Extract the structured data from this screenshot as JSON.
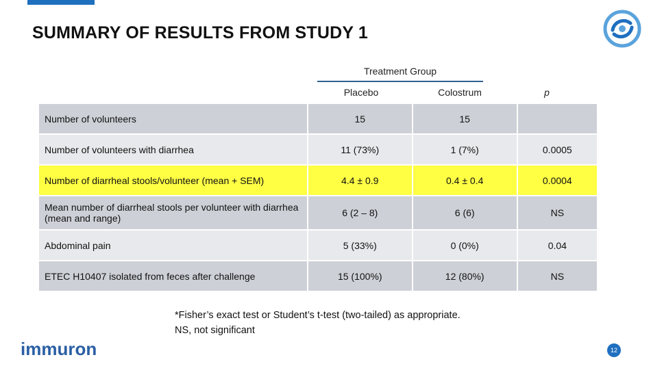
{
  "slide": {
    "title": "SUMMARY OF RESULTS FROM STUDY 1",
    "page_number": "12",
    "brand_name": "immuron",
    "accent_color": "#1f6fbf",
    "highlight_color": "#ffff44"
  },
  "table": {
    "group_header": "Treatment Group",
    "columns": [
      "Placebo",
      "Colostrum",
      "p"
    ],
    "rows": [
      {
        "label": "Number of volunteers",
        "placebo": "15",
        "colostrum": "15",
        "p": ""
      },
      {
        "label": "Number of volunteers with diarrhea",
        "placebo": "11 (73%)",
        "colostrum": "1 (7%)",
        "p": "0.0005"
      },
      {
        "label": "Number of diarrheal stools/volunteer (mean + SEM)",
        "placebo": "4.4 ± 0.9",
        "colostrum": "0.4 ± 0.4",
        "p": "0.0004"
      },
      {
        "label": "Mean number of diarrheal stools per volunteer with diarrhea (mean and range)",
        "placebo": "6 (2 – 8)",
        "colostrum": "6  (6)",
        "p": "NS"
      },
      {
        "label": "Abdominal pain",
        "placebo": "5 (33%)",
        "colostrum": "0 (0%)",
        "p": "0.04"
      },
      {
        "label": "ETEC H10407 isolated from feces after challenge",
        "placebo": "15 (100%)",
        "colostrum": "12 (80%)",
        "p": "NS"
      }
    ]
  },
  "footnotes": [
    "*Fisher’s exact test or Student’s t-test (two-tailed) as appropriate.",
    "NS, not significant"
  ]
}
